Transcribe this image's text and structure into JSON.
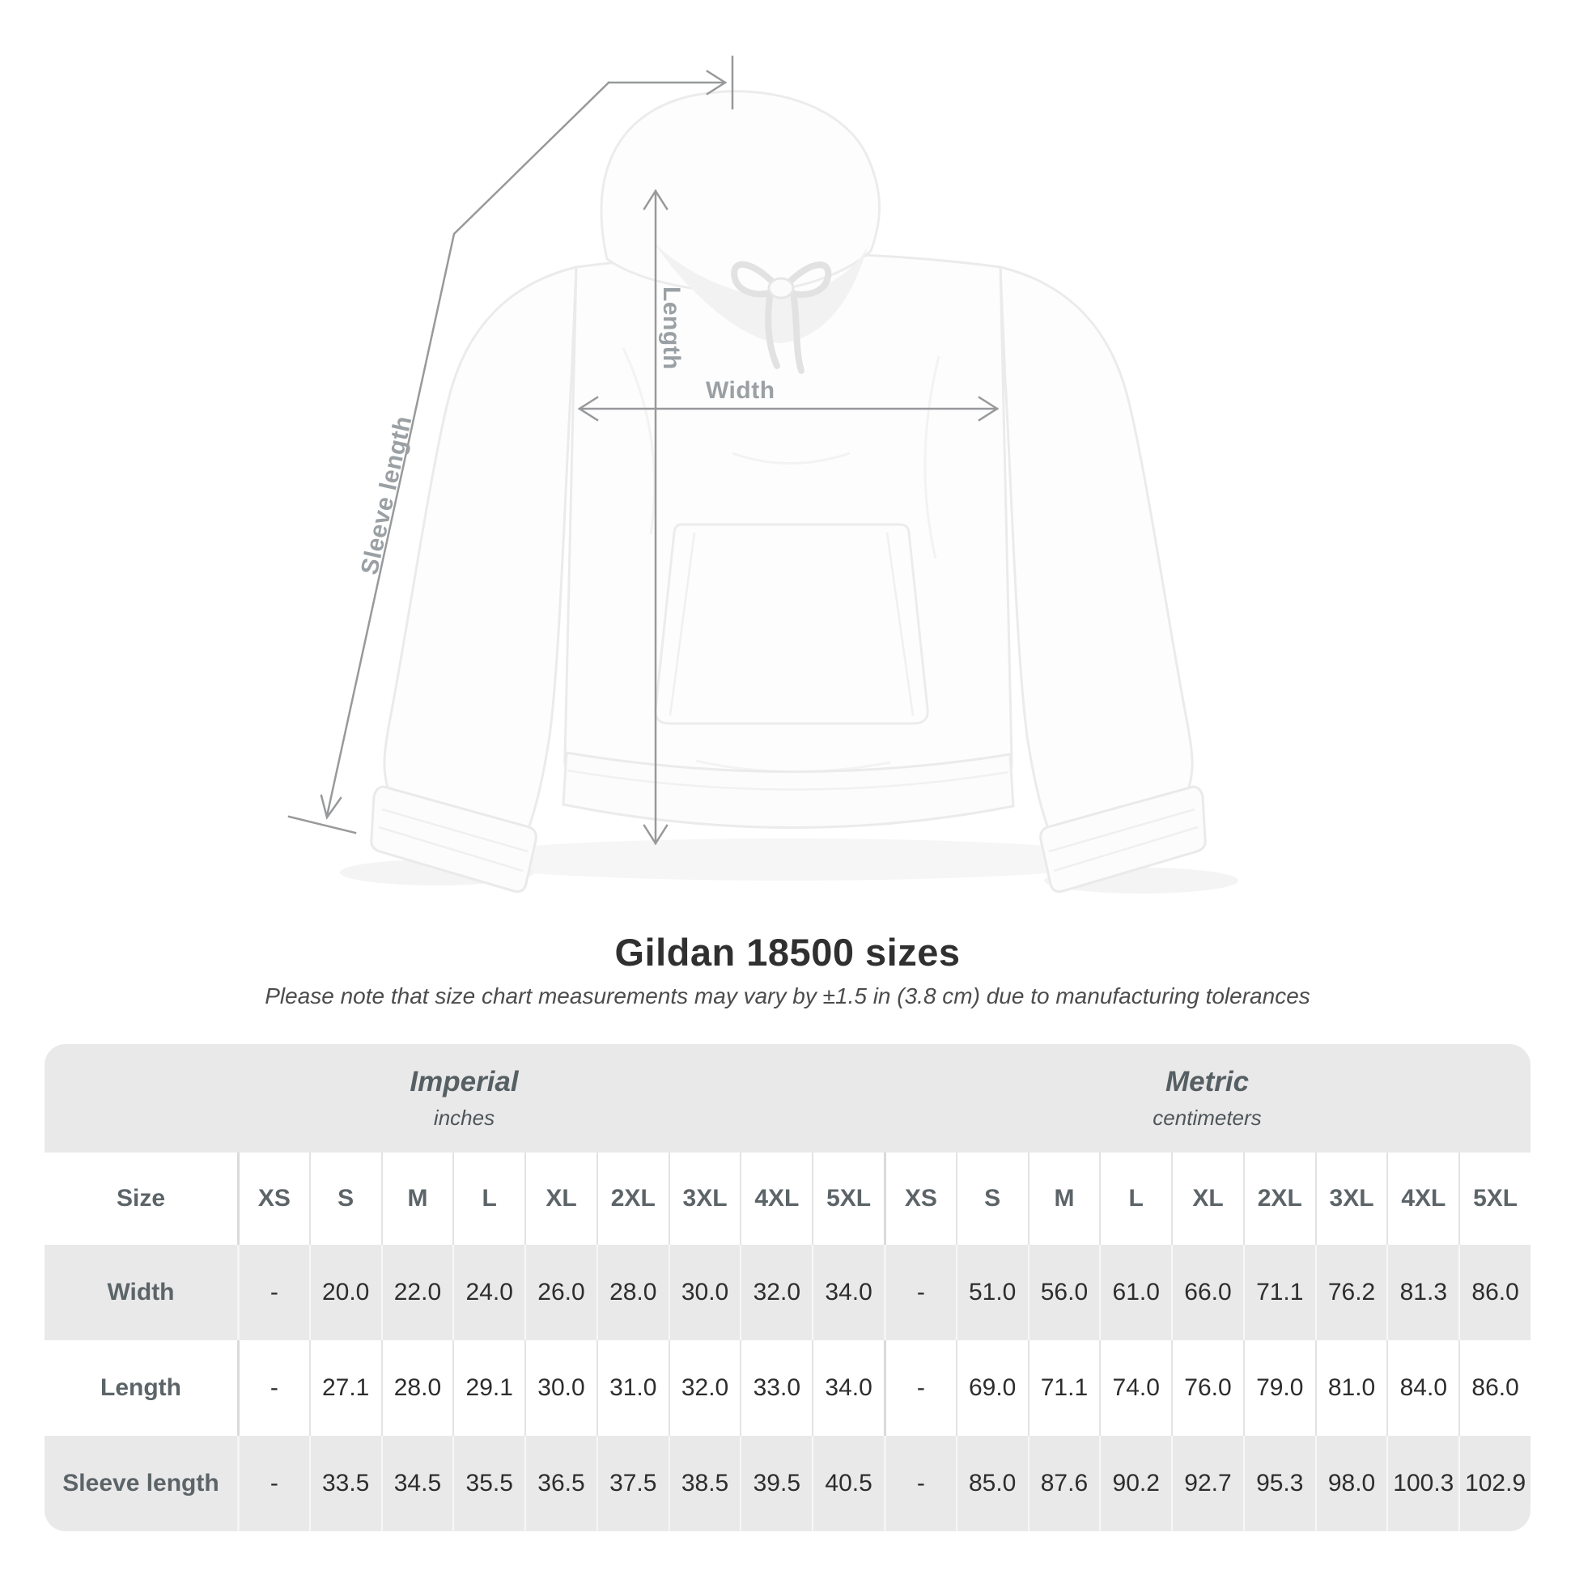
{
  "diagram": {
    "labels": {
      "length": "Length",
      "width": "Width",
      "sleeve": "Sleeve length"
    },
    "line_color": "#97999b",
    "label_color": "#9aa0a3"
  },
  "title_block": {
    "title": "Gildan 18500 sizes",
    "subtitle": "Please note that size chart measurements may vary by ±1.5 in (3.8 cm) due to manufacturing tolerances"
  },
  "size_table": {
    "size_col_header": "Size",
    "unit_groups": [
      {
        "name": "Imperial",
        "unit": "inches"
      },
      {
        "name": "Metric",
        "unit": "centimeters"
      }
    ],
    "sizes": [
      "XS",
      "S",
      "M",
      "L",
      "XL",
      "2XL",
      "3XL",
      "4XL",
      "5XL"
    ],
    "rows": [
      {
        "label": "Width",
        "imperial": [
          "-",
          "20.0",
          "22.0",
          "24.0",
          "26.0",
          "28.0",
          "30.0",
          "32.0",
          "34.0"
        ],
        "metric": [
          "-",
          "51.0",
          "56.0",
          "61.0",
          "66.0",
          "71.1",
          "76.2",
          "81.3",
          "86.0"
        ]
      },
      {
        "label": "Length",
        "imperial": [
          "-",
          "27.1",
          "28.0",
          "29.1",
          "30.0",
          "31.0",
          "32.0",
          "33.0",
          "34.0"
        ],
        "metric": [
          "-",
          "69.0",
          "71.1",
          "74.0",
          "76.0",
          "79.0",
          "81.0",
          "84.0",
          "86.0"
        ]
      },
      {
        "label": "Sleeve length",
        "imperial": [
          "-",
          "33.5",
          "34.5",
          "35.5",
          "36.5",
          "37.5",
          "38.5",
          "39.5",
          "40.5"
        ],
        "metric": [
          "-",
          "85.0",
          "87.6",
          "90.2",
          "92.7",
          "95.3",
          "98.0",
          "100.3",
          "102.9"
        ]
      }
    ],
    "colors": {
      "header_bg": "#e9e9e9",
      "row_alt_bg": "#e9e9e9",
      "row_bg": "#ffffff",
      "label_color": "#5c6468",
      "value_color": "#2d2d2d"
    }
  }
}
